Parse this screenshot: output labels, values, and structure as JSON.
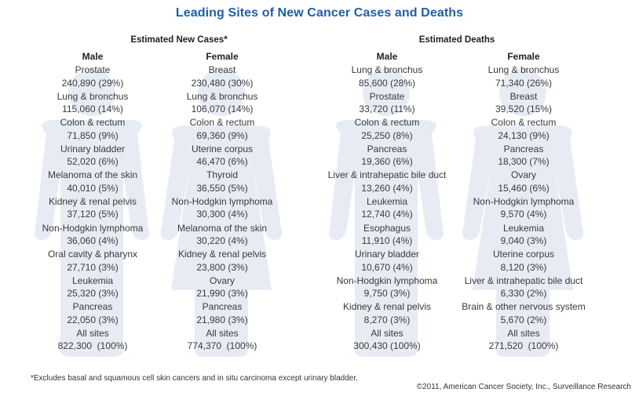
{
  "title": "Leading Sites of New Cancer Cases and Deaths",
  "colors": {
    "title": "#1f5fa8",
    "silhouette": "#e7ecf4",
    "text": "#3a3a3a"
  },
  "sections": [
    {
      "label": "Estimated New Cases*"
    },
    {
      "label": "Estimated Deaths"
    }
  ],
  "footnote": "*Excludes basal and squamous cell skin cancers and in situ carcinoma except urinary bladder.",
  "credit": "©2011, American Cancer Society, Inc., Surveillance Research",
  "chart_data": {
    "type": "table",
    "title": "Leading Sites of New Cancer Cases and Deaths",
    "groups": [
      {
        "section": "Estimated New Cases*",
        "sex": "Male",
        "figure": "male",
        "entries": [
          {
            "site": "Prostate",
            "count": 240890,
            "display": "240,890 (29%)",
            "percent": 29
          },
          {
            "site": "Lung & bronchus",
            "count": 115060,
            "display": "115,060 (14%)",
            "percent": 14
          },
          {
            "site": "Colon & rectum",
            "count": 71850,
            "display": "71,850 (9%)",
            "percent": 9
          },
          {
            "site": "Urinary bladder",
            "count": 52020,
            "display": "52,020 (6%)",
            "percent": 6
          },
          {
            "site": "Melanoma of the skin",
            "count": 40010,
            "display": "40,010 (5%)",
            "percent": 5
          },
          {
            "site": "Kidney & renal pelvis",
            "count": 37120,
            "display": "37,120 (5%)",
            "percent": 5
          },
          {
            "site": "Non-Hodgkin lymphoma",
            "count": 36060,
            "display": "36,060 (4%)",
            "percent": 4
          },
          {
            "site": "Oral cavity & pharynx",
            "count": 27710,
            "display": "27,710 (3%)",
            "percent": 3
          },
          {
            "site": "Leukemia",
            "count": 25320,
            "display": "25,320 (3%)",
            "percent": 3
          },
          {
            "site": "Pancreas",
            "count": 22050,
            "display": "22,050 (3%)",
            "percent": 3
          },
          {
            "site": "All sites",
            "count": 822300,
            "display": "822,300  (100%)",
            "percent": 100
          }
        ]
      },
      {
        "section": "Estimated New Cases*",
        "sex": "Female",
        "figure": "female",
        "entries": [
          {
            "site": "Breast",
            "count": 230480,
            "display": "230,480 (30%)",
            "percent": 30
          },
          {
            "site": "Lung & bronchus",
            "count": 106070,
            "display": "106,070 (14%)",
            "percent": 14
          },
          {
            "site": "Colon & rectum",
            "count": 69360,
            "display": "69,360 (9%)",
            "percent": 9
          },
          {
            "site": "Uterine corpus",
            "count": 46470,
            "display": "46,470 (6%)",
            "percent": 6
          },
          {
            "site": "Thyroid",
            "count": 36550,
            "display": "36,550 (5%)",
            "percent": 5
          },
          {
            "site": "Non-Hodgkin lymphoma",
            "count": 30300,
            "display": "30,300 (4%)",
            "percent": 4
          },
          {
            "site": "Melanoma of the skin",
            "count": 30220,
            "display": "30,220 (4%)",
            "percent": 4
          },
          {
            "site": "Kidney & renal pelvis",
            "count": 23800,
            "display": "23,800 (3%)",
            "percent": 3
          },
          {
            "site": "Ovary",
            "count": 21990,
            "display": "21,990 (3%)",
            "percent": 3
          },
          {
            "site": "Pancreas",
            "count": 21980,
            "display": "21,980 (3%)",
            "percent": 3
          },
          {
            "site": "All sites",
            "count": 774370,
            "display": "774,370  (100%)",
            "percent": 100
          }
        ]
      },
      {
        "section": "Estimated Deaths",
        "sex": "Male",
        "figure": "male",
        "entries": [
          {
            "site": "Lung & bronchus",
            "count": 85600,
            "display": "85,600 (28%)",
            "percent": 28
          },
          {
            "site": "Prostate",
            "count": 33720,
            "display": "33,720 (11%)",
            "percent": 11
          },
          {
            "site": "Colon & rectum",
            "count": 25250,
            "display": "25,250 (8%)",
            "percent": 8
          },
          {
            "site": "Pancreas",
            "count": 19360,
            "display": "19,360 (6%)",
            "percent": 6
          },
          {
            "site": "Liver & intrahepatic bile duct",
            "count": 13260,
            "display": "13,260 (4%)",
            "percent": 4
          },
          {
            "site": "Leukemia",
            "count": 12740,
            "display": "12,740 (4%)",
            "percent": 4
          },
          {
            "site": "Esophagus",
            "count": 11910,
            "display": "11,910 (4%)",
            "percent": 4
          },
          {
            "site": "Urinary bladder",
            "count": 10670,
            "display": "10,670 (4%)",
            "percent": 4
          },
          {
            "site": "Non-Hodgkin lymphoma",
            "count": 9750,
            "display": "9,750 (3%)",
            "percent": 3
          },
          {
            "site": "Kidney & renal pelvis",
            "count": 8270,
            "display": "8,270 (3%)",
            "percent": 3
          },
          {
            "site": "All sites",
            "count": 300430,
            "display": "300,430 (100%)",
            "percent": 100
          }
        ]
      },
      {
        "section": "Estimated Deaths",
        "sex": "Female",
        "figure": "female",
        "entries": [
          {
            "site": "Lung & bronchus",
            "count": 71340,
            "display": "71,340 (26%)",
            "percent": 26
          },
          {
            "site": "Breast",
            "count": 39520,
            "display": "39,520 (15%)",
            "percent": 15
          },
          {
            "site": "Colon & rectum",
            "count": 24130,
            "display": "24,130 (9%)",
            "percent": 9
          },
          {
            "site": "Pancreas",
            "count": 18300,
            "display": "18,300 (7%)",
            "percent": 7
          },
          {
            "site": "Ovary",
            "count": 15460,
            "display": "15,460 (6%)",
            "percent": 6
          },
          {
            "site": "Non-Hodgkin lymphoma",
            "count": 9570,
            "display": "9,570 (4%)",
            "percent": 4
          },
          {
            "site": "Leukemia",
            "count": 9040,
            "display": "9,040 (3%)",
            "percent": 3
          },
          {
            "site": "Uterine corpus",
            "count": 8120,
            "display": "8,120 (3%)",
            "percent": 3
          },
          {
            "site": "Liver & intrahepatic bile duct",
            "count": 6330,
            "display": "6,330 (2%)",
            "percent": 2
          },
          {
            "site": "Brain & other nervous system",
            "count": 5670,
            "display": "5,670 (2%)",
            "percent": 2
          },
          {
            "site": "All sites",
            "count": 271520,
            "display": "271,520  (100%)",
            "percent": 100
          }
        ]
      }
    ]
  }
}
